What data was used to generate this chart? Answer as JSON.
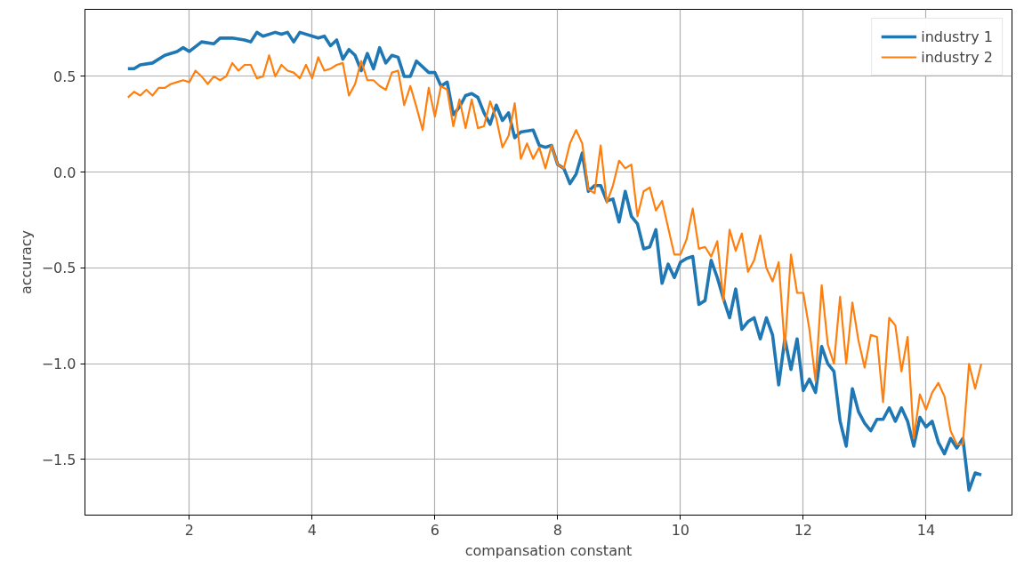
{
  "chart_data": {
    "type": "line",
    "xlabel": "compansation constant",
    "ylabel": "accuracy",
    "xlim": [
      0.3,
      15.4
    ],
    "ylim": [
      -1.79,
      0.85
    ],
    "xticks": [
      2,
      4,
      6,
      8,
      10,
      12,
      14
    ],
    "yticks": [
      {
        "value": -1.5,
        "label": "−1.5"
      },
      {
        "value": -1.0,
        "label": "−1.0"
      },
      {
        "value": -0.5,
        "label": "−0.5"
      },
      {
        "value": 0.0,
        "label": "0.0"
      },
      {
        "value": 0.5,
        "label": "0.5"
      }
    ],
    "grid": true,
    "legend": "top right",
    "line_style": "solid",
    "series": [
      {
        "name": "industry 1",
        "color": "#1f77b4",
        "x": [
          1.0,
          1.1,
          1.2,
          1.4,
          1.6,
          1.8,
          1.9,
          2.0,
          2.2,
          2.4,
          2.5,
          2.7,
          2.9,
          3.0,
          3.1,
          3.2,
          3.4,
          3.5,
          3.6,
          3.7,
          3.8,
          4.1,
          4.2,
          4.3,
          4.4,
          4.5,
          4.6,
          4.7,
          4.8,
          4.9,
          5.0,
          5.1,
          5.2,
          5.3,
          5.4,
          5.5,
          5.6,
          5.7,
          5.9,
          6.0,
          6.1,
          6.2,
          6.3,
          6.4,
          6.5,
          6.6,
          6.7,
          6.8,
          6.9,
          7.0,
          7.1,
          7.2,
          7.3,
          7.4,
          7.6,
          7.7,
          7.8,
          7.9,
          8.0,
          8.1,
          8.2,
          8.3,
          8.4,
          8.5,
          8.6,
          8.7,
          8.8,
          8.9,
          9.0,
          9.1,
          9.2,
          9.3,
          9.4,
          9.5,
          9.6,
          9.7,
          9.8,
          9.9,
          10.0,
          10.1,
          10.2,
          10.3,
          10.4,
          10.5,
          10.6,
          10.7,
          10.8,
          10.9,
          11.0,
          11.1,
          11.2,
          11.3,
          11.4,
          11.5,
          11.6,
          11.7,
          11.8,
          11.9,
          12.0,
          12.1,
          12.2,
          12.3,
          12.4,
          12.5,
          12.6,
          12.7,
          12.8,
          12.9,
          13.0,
          13.1,
          13.2,
          13.3,
          13.4,
          13.5,
          13.6,
          13.7,
          13.8,
          13.9,
          14.0,
          14.1,
          14.2,
          14.3,
          14.4,
          14.5,
          14.6,
          14.7,
          14.8,
          14.9
        ],
        "values": [
          0.54,
          0.54,
          0.56,
          0.57,
          0.61,
          0.63,
          0.65,
          0.63,
          0.68,
          0.67,
          0.7,
          0.7,
          0.69,
          0.68,
          0.73,
          0.71,
          0.73,
          0.72,
          0.73,
          0.68,
          0.73,
          0.7,
          0.71,
          0.66,
          0.69,
          0.59,
          0.64,
          0.61,
          0.53,
          0.62,
          0.54,
          0.65,
          0.57,
          0.61,
          0.6,
          0.5,
          0.5,
          0.58,
          0.52,
          0.52,
          0.45,
          0.47,
          0.3,
          0.34,
          0.4,
          0.41,
          0.39,
          0.31,
          0.25,
          0.35,
          0.27,
          0.31,
          0.18,
          0.21,
          0.22,
          0.14,
          0.13,
          0.14,
          0.04,
          0.02,
          -0.06,
          -0.01,
          0.1,
          -0.1,
          -0.07,
          -0.07,
          -0.15,
          -0.14,
          -0.26,
          -0.1,
          -0.23,
          -0.27,
          -0.4,
          -0.39,
          -0.3,
          -0.58,
          -0.48,
          -0.55,
          -0.47,
          -0.45,
          -0.44,
          -0.69,
          -0.67,
          -0.46,
          -0.55,
          -0.66,
          -0.76,
          -0.61,
          -0.82,
          -0.78,
          -0.76,
          -0.87,
          -0.76,
          -0.85,
          -1.11,
          -0.87,
          -1.03,
          -0.87,
          -1.14,
          -1.08,
          -1.15,
          -0.91,
          -1.0,
          -1.04,
          -1.3,
          -1.43,
          -1.13,
          -1.25,
          -1.31,
          -1.35,
          -1.29,
          -1.29,
          -1.23,
          -1.3,
          -1.23,
          -1.3,
          -1.43,
          -1.28,
          -1.33,
          -1.3,
          -1.41,
          -1.47,
          -1.39,
          -1.44,
          -1.39,
          -1.66,
          -1.57,
          -1.58
        ]
      },
      {
        "name": "industry 2",
        "color": "#ff7f0e",
        "x": [
          1.0,
          1.1,
          1.2,
          1.3,
          1.4,
          1.5,
          1.6,
          1.7,
          1.8,
          1.9,
          2.0,
          2.1,
          2.2,
          2.3,
          2.4,
          2.5,
          2.6,
          2.7,
          2.8,
          2.9,
          3.0,
          3.1,
          3.2,
          3.3,
          3.4,
          3.5,
          3.6,
          3.7,
          3.8,
          3.9,
          4.0,
          4.1,
          4.2,
          4.3,
          4.4,
          4.5,
          4.6,
          4.7,
          4.8,
          4.9,
          5.0,
          5.1,
          5.2,
          5.3,
          5.4,
          5.5,
          5.6,
          5.7,
          5.8,
          5.9,
          6.0,
          6.1,
          6.2,
          6.3,
          6.4,
          6.5,
          6.6,
          6.7,
          6.8,
          6.9,
          7.0,
          7.1,
          7.2,
          7.3,
          7.4,
          7.5,
          7.6,
          7.7,
          7.8,
          7.9,
          8.0,
          8.1,
          8.2,
          8.3,
          8.4,
          8.5,
          8.6,
          8.7,
          8.8,
          8.9,
          9.0,
          9.1,
          9.2,
          9.3,
          9.4,
          9.5,
          9.6,
          9.7,
          9.8,
          9.9,
          10.0,
          10.1,
          10.2,
          10.3,
          10.4,
          10.5,
          10.6,
          10.7,
          10.8,
          10.9,
          11.0,
          11.1,
          11.2,
          11.3,
          11.4,
          11.5,
          11.6,
          11.7,
          11.8,
          11.9,
          12.0,
          12.1,
          12.2,
          12.3,
          12.4,
          12.5,
          12.6,
          12.7,
          12.8,
          12.9,
          13.0,
          13.1,
          13.2,
          13.3,
          13.4,
          13.5,
          13.6,
          13.7,
          13.8,
          13.9,
          14.0,
          14.1,
          14.2,
          14.3,
          14.4,
          14.5,
          14.6,
          14.7,
          14.8,
          14.9
        ],
        "values": [
          0.39,
          0.42,
          0.4,
          0.43,
          0.4,
          0.44,
          0.44,
          0.46,
          0.47,
          0.48,
          0.47,
          0.53,
          0.5,
          0.46,
          0.5,
          0.48,
          0.5,
          0.57,
          0.53,
          0.56,
          0.56,
          0.49,
          0.5,
          0.61,
          0.5,
          0.56,
          0.53,
          0.52,
          0.49,
          0.56,
          0.49,
          0.6,
          0.53,
          0.54,
          0.56,
          0.57,
          0.4,
          0.46,
          0.58,
          0.48,
          0.48,
          0.45,
          0.43,
          0.52,
          0.53,
          0.35,
          0.45,
          0.34,
          0.22,
          0.44,
          0.29,
          0.45,
          0.43,
          0.24,
          0.38,
          0.23,
          0.38,
          0.23,
          0.24,
          0.37,
          0.28,
          0.13,
          0.19,
          0.36,
          0.07,
          0.15,
          0.07,
          0.13,
          0.02,
          0.14,
          0.04,
          0.02,
          0.15,
          0.22,
          0.15,
          -0.09,
          -0.11,
          0.14,
          -0.16,
          -0.07,
          0.06,
          0.02,
          0.04,
          -0.23,
          -0.1,
          -0.08,
          -0.2,
          -0.15,
          -0.29,
          -0.43,
          -0.43,
          -0.35,
          -0.19,
          -0.4,
          -0.39,
          -0.44,
          -0.36,
          -0.67,
          -0.3,
          -0.41,
          -0.32,
          -0.52,
          -0.46,
          -0.33,
          -0.5,
          -0.57,
          -0.47,
          -0.92,
          -0.43,
          -0.63,
          -0.63,
          -0.82,
          -1.09,
          -0.59,
          -0.9,
          -1.0,
          -0.65,
          -1.0,
          -0.68,
          -0.88,
          -1.02,
          -0.85,
          -0.86,
          -1.2,
          -0.76,
          -0.8,
          -1.04,
          -0.86,
          -1.39,
          -1.16,
          -1.24,
          -1.15,
          -1.1,
          -1.17,
          -1.35,
          -1.42,
          -1.42,
          -1.0,
          -1.13,
          -1.0
        ]
      }
    ]
  }
}
